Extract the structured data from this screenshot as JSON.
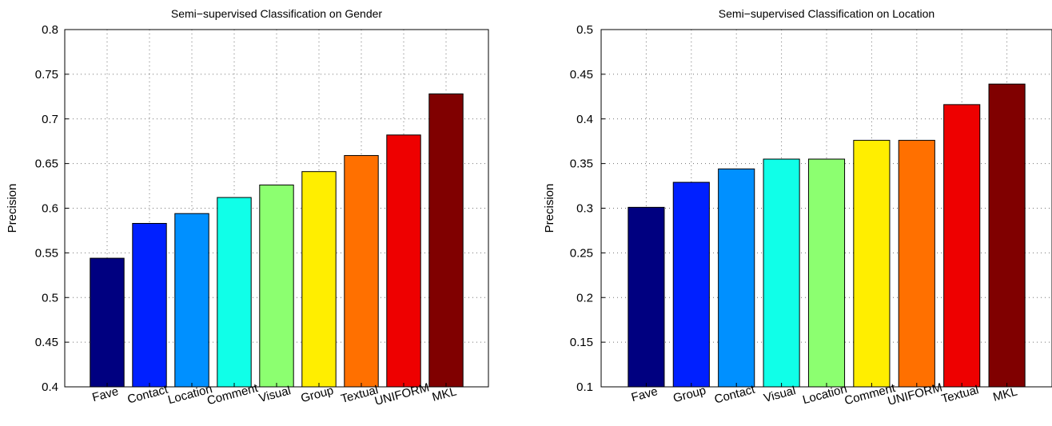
{
  "chart_data": [
    {
      "type": "bar",
      "title": "Semi−supervised Classification on Gender",
      "xlabel": "",
      "ylabel": "Precision",
      "ylim": [
        0.4,
        0.8
      ],
      "yticks": [
        0.4,
        0.45,
        0.5,
        0.55,
        0.6,
        0.65,
        0.7,
        0.75,
        0.8
      ],
      "ytick_labels": [
        "0.4",
        "0.45",
        "0.5",
        "0.55",
        "0.6",
        "0.65",
        "0.7",
        "0.75",
        "0.8"
      ],
      "grid": true,
      "categories": [
        "Fave",
        "Contact",
        "Location",
        "Comment",
        "Visual",
        "Group",
        "Textual",
        "UNIFORM",
        "MKL"
      ],
      "values": [
        0.544,
        0.583,
        0.594,
        0.612,
        0.626,
        0.641,
        0.659,
        0.682,
        0.728
      ],
      "colors": [
        "#000080",
        "#0020ff",
        "#0090ff",
        "#10ffe8",
        "#8cff70",
        "#ffee00",
        "#ff7000",
        "#ee0000",
        "#800000"
      ]
    },
    {
      "type": "bar",
      "title": "Semi−supervised Classification on Location",
      "xlabel": "",
      "ylabel": "Precision",
      "ylim": [
        0.1,
        0.5
      ],
      "yticks": [
        0.1,
        0.15,
        0.2,
        0.25,
        0.3,
        0.35,
        0.4,
        0.45,
        0.5
      ],
      "ytick_labels": [
        "0.1",
        "0.15",
        "0.2",
        "0.25",
        "0.3",
        "0.35",
        "0.4",
        "0.45",
        "0.5"
      ],
      "grid": true,
      "categories": [
        "Fave",
        "Group",
        "Contact",
        "Visual",
        "Location",
        "Comment",
        "UNIFORM",
        "Textual",
        "MKL"
      ],
      "values": [
        0.301,
        0.329,
        0.344,
        0.355,
        0.355,
        0.376,
        0.376,
        0.416,
        0.439
      ],
      "colors": [
        "#000080",
        "#0020ff",
        "#0090ff",
        "#10ffe8",
        "#8cff70",
        "#ffee00",
        "#ff7000",
        "#ee0000",
        "#800000"
      ]
    }
  ]
}
